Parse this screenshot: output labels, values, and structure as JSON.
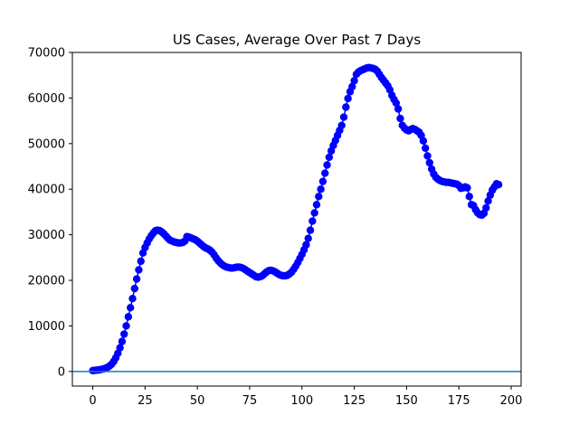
{
  "chart_data": {
    "type": "scatter",
    "title": "US Cases, Average Over Past 7 Days",
    "xlabel": "",
    "ylabel": "",
    "xlim": [
      -9.75,
      204.75
    ],
    "ylim": [
      -3200,
      70000
    ],
    "x_ticks": [
      0,
      25,
      50,
      75,
      100,
      125,
      150,
      175,
      200
    ],
    "y_ticks": [
      0,
      10000,
      20000,
      30000,
      40000,
      50000,
      60000,
      70000
    ],
    "grid": false,
    "legend": "none",
    "marker_color": "#0000ff",
    "baseline": {
      "y": 0,
      "color": "#1f77b4"
    },
    "series": [
      {
        "points": [
          [
            0,
            200
          ],
          [
            1,
            250
          ],
          [
            2,
            300
          ],
          [
            3,
            350
          ],
          [
            4,
            450
          ],
          [
            5,
            550
          ],
          [
            6,
            700
          ],
          [
            7,
            900
          ],
          [
            8,
            1200
          ],
          [
            9,
            1600
          ],
          [
            10,
            2200
          ],
          [
            11,
            3000
          ],
          [
            12,
            4000
          ],
          [
            13,
            5200
          ],
          [
            14,
            6600
          ],
          [
            15,
            8200
          ],
          [
            16,
            10000
          ],
          [
            17,
            12000
          ],
          [
            18,
            14000
          ],
          [
            19,
            16000
          ],
          [
            20,
            18200
          ],
          [
            21,
            20300
          ],
          [
            22,
            22300
          ],
          [
            23,
            24200
          ],
          [
            24,
            26000
          ],
          [
            25,
            27200
          ],
          [
            26,
            28200
          ],
          [
            27,
            29100
          ],
          [
            28,
            29800
          ],
          [
            29,
            30400
          ],
          [
            30,
            30900
          ],
          [
            31,
            31000
          ],
          [
            32,
            30900
          ],
          [
            33,
            30600
          ],
          [
            34,
            30200
          ],
          [
            35,
            29700
          ],
          [
            36,
            29200
          ],
          [
            37,
            28800
          ],
          [
            38,
            28600
          ],
          [
            39,
            28400
          ],
          [
            40,
            28300
          ],
          [
            41,
            28200
          ],
          [
            42,
            28200
          ],
          [
            43,
            28300
          ],
          [
            44,
            28600
          ],
          [
            45,
            29600
          ],
          [
            46,
            29500
          ],
          [
            47,
            29300
          ],
          [
            48,
            29100
          ],
          [
            49,
            28900
          ],
          [
            50,
            28600
          ],
          [
            51,
            28200
          ],
          [
            52,
            27800
          ],
          [
            53,
            27400
          ],
          [
            54,
            27100
          ],
          [
            55,
            26900
          ],
          [
            56,
            26600
          ],
          [
            57,
            26200
          ],
          [
            58,
            25600
          ],
          [
            59,
            24900
          ],
          [
            60,
            24300
          ],
          [
            61,
            23800
          ],
          [
            62,
            23400
          ],
          [
            63,
            23100
          ],
          [
            64,
            22900
          ],
          [
            65,
            22800
          ],
          [
            66,
            22700
          ],
          [
            67,
            22700
          ],
          [
            68,
            22800
          ],
          [
            69,
            22900
          ],
          [
            70,
            22900
          ],
          [
            71,
            22800
          ],
          [
            72,
            22600
          ],
          [
            73,
            22300
          ],
          [
            74,
            22000
          ],
          [
            75,
            21700
          ],
          [
            76,
            21400
          ],
          [
            77,
            21100
          ],
          [
            78,
            20800
          ],
          [
            79,
            20700
          ],
          [
            80,
            20800
          ],
          [
            81,
            21000
          ],
          [
            82,
            21400
          ],
          [
            83,
            21800
          ],
          [
            84,
            22100
          ],
          [
            85,
            22200
          ],
          [
            86,
            22100
          ],
          [
            87,
            21900
          ],
          [
            88,
            21600
          ],
          [
            89,
            21300
          ],
          [
            90,
            21100
          ],
          [
            91,
            21000
          ],
          [
            92,
            21000
          ],
          [
            93,
            21100
          ],
          [
            94,
            21400
          ],
          [
            95,
            21800
          ],
          [
            96,
            22400
          ],
          [
            97,
            23100
          ],
          [
            98,
            23900
          ],
          [
            99,
            24800
          ],
          [
            100,
            25700
          ],
          [
            101,
            26700
          ],
          [
            102,
            27800
          ],
          [
            103,
            29200
          ],
          [
            104,
            31000
          ],
          [
            105,
            33000
          ],
          [
            106,
            34800
          ],
          [
            107,
            36600
          ],
          [
            108,
            38400
          ],
          [
            109,
            40000
          ],
          [
            110,
            41700
          ],
          [
            111,
            43500
          ],
          [
            112,
            45300
          ],
          [
            113,
            47000
          ],
          [
            114,
            48400
          ],
          [
            115,
            49600
          ],
          [
            116,
            50700
          ],
          [
            117,
            51800
          ],
          [
            118,
            52900
          ],
          [
            119,
            54000
          ],
          [
            120,
            55800
          ],
          [
            121,
            58000
          ],
          [
            122,
            59900
          ],
          [
            123,
            61400
          ],
          [
            124,
            62500
          ],
          [
            125,
            63800
          ],
          [
            126,
            65200
          ],
          [
            127,
            65700
          ],
          [
            128,
            66000
          ],
          [
            129,
            66200
          ],
          [
            130,
            66400
          ],
          [
            131,
            66600
          ],
          [
            132,
            66700
          ],
          [
            133,
            66600
          ],
          [
            134,
            66500
          ],
          [
            135,
            66300
          ],
          [
            136,
            65900
          ],
          [
            137,
            65200
          ],
          [
            138,
            64500
          ],
          [
            139,
            63900
          ],
          [
            140,
            63300
          ],
          [
            141,
            62700
          ],
          [
            142,
            61800
          ],
          [
            143,
            60600
          ],
          [
            144,
            59700
          ],
          [
            145,
            58900
          ],
          [
            146,
            57600
          ],
          [
            147,
            55500
          ],
          [
            148,
            54000
          ],
          [
            149,
            53400
          ],
          [
            150,
            53000
          ],
          [
            151,
            52800
          ],
          [
            152,
            53100
          ],
          [
            153,
            53300
          ],
          [
            154,
            53100
          ],
          [
            155,
            52800
          ],
          [
            156,
            52500
          ],
          [
            157,
            51800
          ],
          [
            158,
            50600
          ],
          [
            159,
            49000
          ],
          [
            160,
            47300
          ],
          [
            161,
            45800
          ],
          [
            162,
            44400
          ],
          [
            163,
            43300
          ],
          [
            164,
            42600
          ],
          [
            165,
            42200
          ],
          [
            166,
            41900
          ],
          [
            167,
            41700
          ],
          [
            168,
            41600
          ],
          [
            169,
            41500
          ],
          [
            170,
            41500
          ],
          [
            171,
            41400
          ],
          [
            172,
            41300
          ],
          [
            173,
            41200
          ],
          [
            174,
            41100
          ],
          [
            175,
            40800
          ],
          [
            176,
            40200
          ],
          [
            177,
            40300
          ],
          [
            178,
            40500
          ],
          [
            179,
            40300
          ],
          [
            180,
            38400
          ],
          [
            181,
            36600
          ],
          [
            182,
            36400
          ],
          [
            183,
            35500
          ],
          [
            184,
            34800
          ],
          [
            185,
            34400
          ],
          [
            186,
            34300
          ],
          [
            187,
            34700
          ],
          [
            188,
            35900
          ],
          [
            189,
            37400
          ],
          [
            190,
            38700
          ],
          [
            191,
            39800
          ],
          [
            192,
            40500
          ],
          [
            193,
            41200
          ],
          [
            194,
            41000
          ]
        ]
      }
    ]
  }
}
